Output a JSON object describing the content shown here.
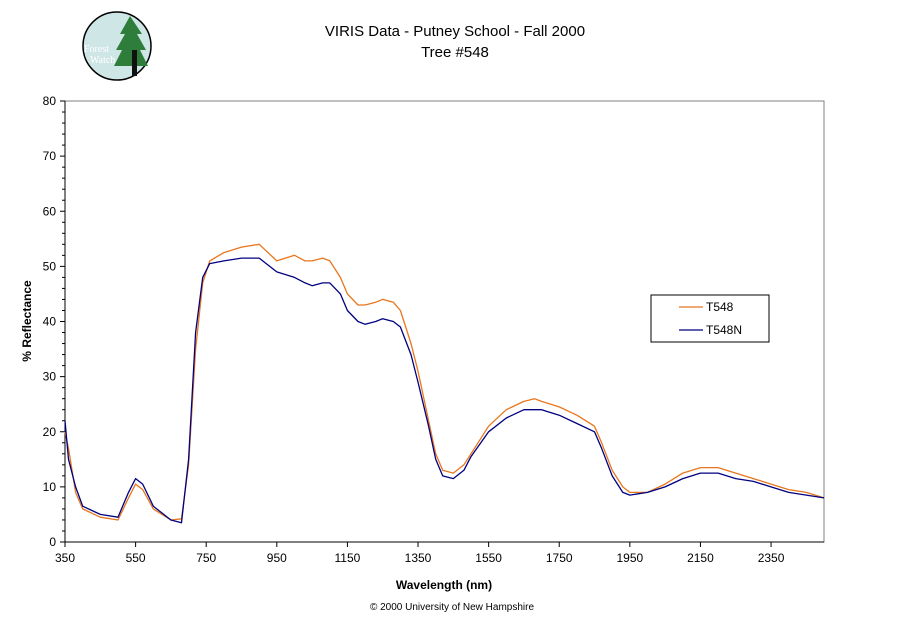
{
  "title_line1": "VIRIS Data - Putney School - Fall 2000",
  "title_line2": "Tree #548",
  "footer": "© 2000 University of New Hampshire",
  "logo": {
    "text_line1": "Forest",
    "text_line2": "Watch"
  },
  "chart_data": {
    "type": "line",
    "title": "VIRIS Data - Putney School - Fall 2000 Tree #548",
    "xlabel": "Wavelength (nm)",
    "ylabel": "% Reflectance",
    "xlim": [
      350,
      2500
    ],
    "ylim": [
      0,
      80
    ],
    "x_ticks": [
      350,
      550,
      750,
      950,
      1150,
      1350,
      1550,
      1750,
      1950,
      2150,
      2350
    ],
    "y_ticks": [
      0,
      10,
      20,
      30,
      40,
      50,
      60,
      70,
      80
    ],
    "grid": false,
    "legend_position": "right",
    "x": [
      350,
      360,
      380,
      400,
      450,
      500,
      530,
      550,
      570,
      600,
      650,
      680,
      700,
      720,
      740,
      760,
      800,
      850,
      900,
      950,
      1000,
      1030,
      1050,
      1080,
      1100,
      1130,
      1150,
      1180,
      1200,
      1230,
      1250,
      1280,
      1300,
      1330,
      1350,
      1380,
      1400,
      1420,
      1450,
      1480,
      1500,
      1550,
      1600,
      1650,
      1680,
      1700,
      1750,
      1800,
      1850,
      1870,
      1900,
      1930,
      1950,
      2000,
      2050,
      2100,
      2150,
      2200,
      2250,
      2300,
      2350,
      2400,
      2450,
      2500
    ],
    "series": [
      {
        "name": "T548",
        "color": "#E8761E",
        "values": [
          20,
          17,
          9,
          6,
          4.5,
          4,
          8,
          10.5,
          9.5,
          6,
          4,
          4.2,
          14,
          35,
          47,
          51,
          52.5,
          53.5,
          54,
          51,
          52,
          51,
          51,
          51.5,
          51,
          48,
          45,
          43,
          43,
          43.5,
          44,
          43.5,
          42,
          36,
          31,
          22,
          16,
          13,
          12.5,
          14,
          16,
          21,
          24,
          25.5,
          26,
          25.5,
          24.5,
          23,
          21,
          18,
          13,
          10,
          9,
          9,
          10.5,
          12.5,
          13.5,
          13.5,
          12.5,
          11.5,
          10.5,
          9.5,
          9,
          8
        ]
      },
      {
        "name": "T548N",
        "color": "#000080",
        "values": [
          22,
          15,
          10,
          6.5,
          5,
          4.5,
          9,
          11.5,
          10.5,
          6.5,
          4,
          3.5,
          15,
          38,
          48,
          50.5,
          51,
          51.5,
          51.5,
          49,
          48,
          47,
          46.5,
          47,
          47,
          45,
          42,
          40,
          39.5,
          40,
          40.5,
          40,
          39,
          34,
          29,
          21,
          15,
          12,
          11.5,
          13,
          15.5,
          20,
          22.5,
          24,
          24,
          24,
          23,
          21.5,
          20,
          17,
          12,
          9,
          8.5,
          9,
          10,
          11.5,
          12.5,
          12.5,
          11.5,
          11,
          10,
          9,
          8.5,
          8
        ]
      }
    ]
  }
}
